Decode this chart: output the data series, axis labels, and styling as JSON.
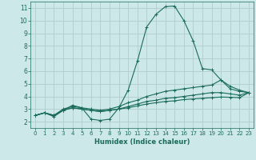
{
  "background_color": "#cce8e8",
  "grid_color": "#b0cccc",
  "line_color": "#1a6b5a",
  "xlabel": "Humidex (Indice chaleur)",
  "xlim": [
    -0.5,
    23.5
  ],
  "ylim": [
    1.5,
    11.5
  ],
  "xticks": [
    0,
    1,
    2,
    3,
    4,
    5,
    6,
    7,
    8,
    9,
    10,
    11,
    12,
    13,
    14,
    15,
    16,
    17,
    18,
    19,
    20,
    21,
    22,
    23
  ],
  "yticks": [
    2,
    3,
    4,
    5,
    6,
    7,
    8,
    9,
    10,
    11
  ],
  "series": [
    [
      2.5,
      2.7,
      2.4,
      2.9,
      3.3,
      3.1,
      2.2,
      2.1,
      2.2,
      3.1,
      4.5,
      6.8,
      9.5,
      10.5,
      11.1,
      11.15,
      10.0,
      8.4,
      6.2,
      6.1,
      5.3,
      4.6,
      4.4,
      4.3
    ],
    [
      2.5,
      2.7,
      2.5,
      3.0,
      3.2,
      3.1,
      3.0,
      2.9,
      3.0,
      3.2,
      3.5,
      3.7,
      4.0,
      4.2,
      4.4,
      4.5,
      4.6,
      4.7,
      4.8,
      4.9,
      5.3,
      4.8,
      4.5,
      4.3
    ],
    [
      2.5,
      2.7,
      2.5,
      2.9,
      3.1,
      3.0,
      2.9,
      2.8,
      2.9,
      3.0,
      3.2,
      3.4,
      3.6,
      3.7,
      3.85,
      3.9,
      4.0,
      4.1,
      4.2,
      4.3,
      4.3,
      4.2,
      4.1,
      4.3
    ],
    [
      2.5,
      2.7,
      2.5,
      2.9,
      3.1,
      3.0,
      2.9,
      2.8,
      2.9,
      3.0,
      3.1,
      3.25,
      3.4,
      3.5,
      3.6,
      3.65,
      3.75,
      3.8,
      3.85,
      3.9,
      3.95,
      3.93,
      3.9,
      4.3
    ]
  ]
}
